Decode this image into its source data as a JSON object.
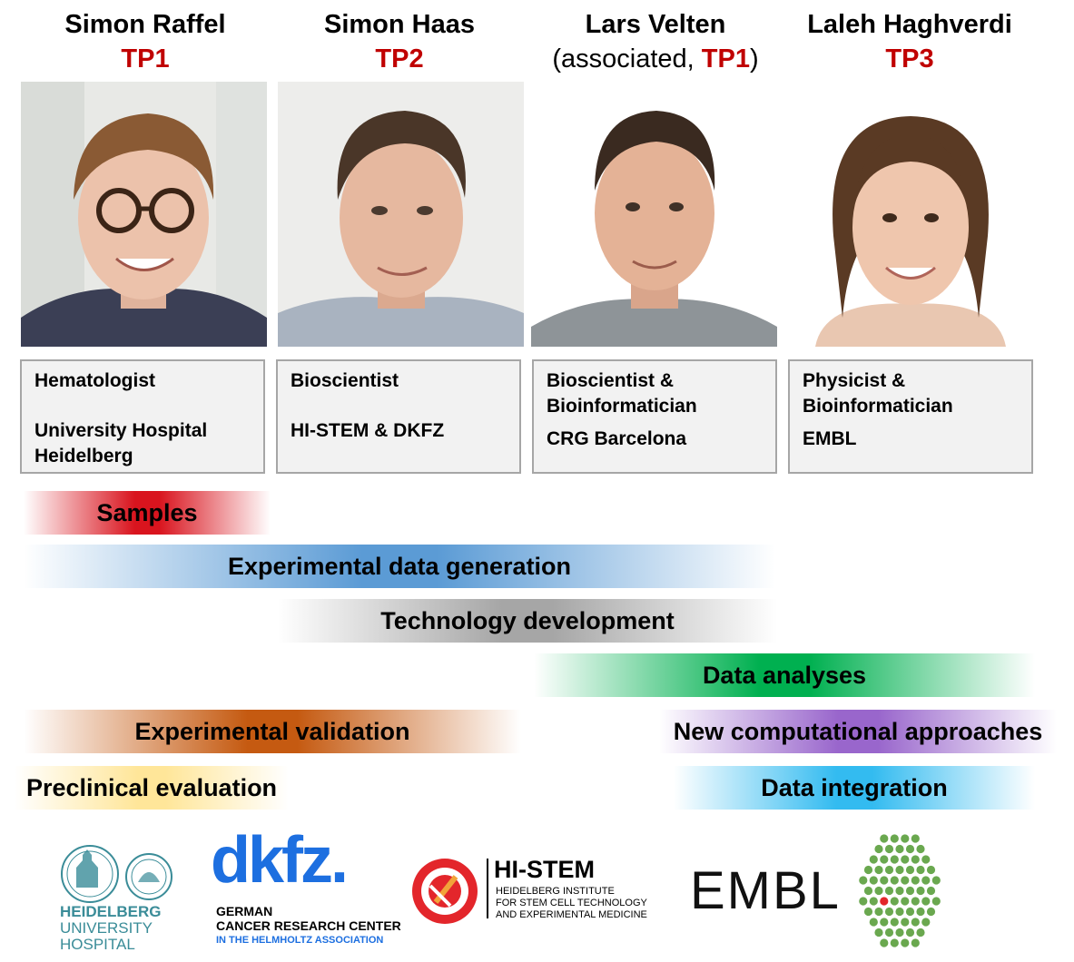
{
  "people": [
    {
      "name": "Simon Raffel",
      "tp_prefix": "",
      "tp": "TP1",
      "tp_suffix": "",
      "role": "Hematologist",
      "affiliation": [
        "University Hospital",
        "Heidelberg"
      ]
    },
    {
      "name": "Simon Haas",
      "tp_prefix": "",
      "tp": "TP2",
      "tp_suffix": "",
      "role": "Bioscientist",
      "affiliation": [
        "HI-STEM & DKFZ"
      ]
    },
    {
      "name": "Lars Velten",
      "tp_prefix": "(associated, ",
      "tp": "TP1",
      "tp_suffix": ")",
      "role": [
        "Bioscientist &",
        "Bioinformatician"
      ],
      "affiliation": [
        "CRG Barcelona"
      ]
    },
    {
      "name": "Laleh Haghverdi",
      "tp_prefix": "",
      "tp": "TP3",
      "tp_suffix": "",
      "role": [
        "Physicist &",
        "Bioinformatician"
      ],
      "affiliation": [
        "EMBL"
      ]
    }
  ],
  "bands": {
    "samples": "Samples",
    "experimental_data_generation": "Experimental data generation",
    "technology_development": "Technology development",
    "data_analyses": "Data analyses",
    "experimental_validation": "Experimental validation",
    "new_computational_approaches": "New computational approaches",
    "preclinical_evaluation": "Preclinical evaluation",
    "data_integration": "Data integration"
  },
  "colors": {
    "tp_red": "#c00000",
    "samples": "#d9141e",
    "experimental_data_generation": "#5b9bd5",
    "technology_development": "#a6a6a6",
    "data_analyses": "#00b050",
    "experimental_validation": "#c55a11",
    "new_computational_approaches": "#9966cc",
    "preclinical_evaluation": "#ffe699",
    "data_integration": "#33bbf0",
    "dkfz_blue": "#1d6fe0",
    "heidelberg_teal": "#3a8c98",
    "histem_red": "#e3262b",
    "embl_green": "#6aa84f"
  },
  "logos": {
    "heidelberg": [
      "HEIDELBERG",
      "UNIVERSITY",
      "HOSPITAL"
    ],
    "dkfz": {
      "mark": "dkfz.",
      "line1": "GERMAN",
      "line2": "CANCER RESEARCH CENTER",
      "line3": "IN THE HELMHOLTZ ASSOCIATION"
    },
    "histem": {
      "title": "HI-STEM",
      "line1": "HEIDELBERG INSTITUTE",
      "line2": "FOR STEM CELL TECHNOLOGY",
      "line3": "AND EXPERIMENTAL MEDICINE"
    },
    "embl": "EMBL"
  }
}
